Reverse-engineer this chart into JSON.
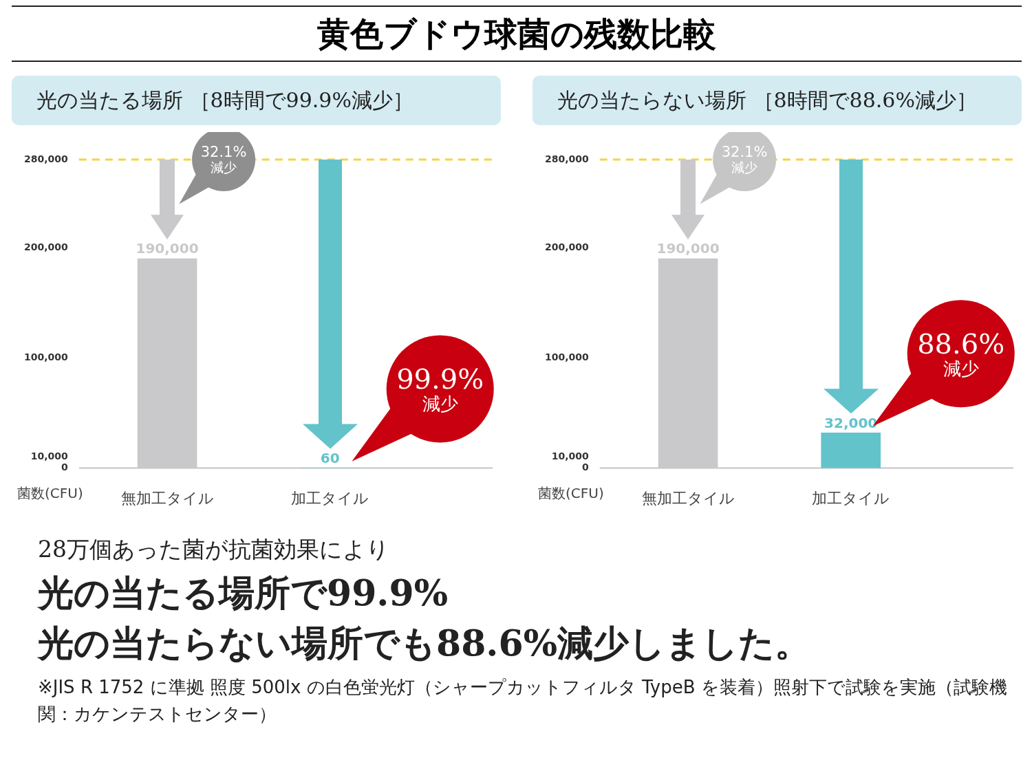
{
  "chart_data": [
    {
      "type": "bar",
      "title": "黄色ブドウ球菌の残数比較",
      "subtitle": "光の当たる場所 ［8時間で99.9%減少］",
      "ylabel": "菌数(CFU)",
      "categories": [
        "無加工タイル",
        "加工タイル"
      ],
      "values": [
        190000,
        60
      ],
      "value_labels": [
        "190,000",
        "60"
      ],
      "colors": [
        "#c9c9cb",
        "#63c3cb"
      ],
      "ylim": [
        0,
        280000
      ],
      "yticks": [
        0,
        {
          "value": 10000,
          "label": "10,000"
        },
        {
          "value": 100000,
          "label": "100,000"
        },
        {
          "value": 200000,
          "label": "200,000"
        },
        {
          "value": 280000,
          "label": "280,000"
        }
      ],
      "ref_lines": [
        {
          "axis": "y",
          "value": 280000,
          "color": "#f5d442",
          "line_style": "dashed"
        }
      ],
      "annotations": [
        "32.1% 減少",
        "99.9% 減少"
      ]
    },
    {
      "type": "bar",
      "subtitle": "光の当たらない場所 ［8時間で88.6%減少］",
      "ylabel": "菌数(CFU)",
      "categories": [
        "無加工タイル",
        "加工タイル"
      ],
      "values": [
        190000,
        32000
      ],
      "value_labels": [
        "190,000",
        "32,000"
      ],
      "colors": [
        "#c9c9cb",
        "#63c3cb"
      ],
      "ylim": [
        0,
        280000
      ],
      "yticks": [
        0,
        {
          "value": 10000,
          "label": "10,000"
        },
        {
          "value": 100000,
          "label": "100,000"
        },
        {
          "value": 200000,
          "label": "200,000"
        },
        {
          "value": 280000,
          "label": "280,000"
        }
      ],
      "ref_lines": [
        {
          "axis": "y",
          "value": 280000,
          "color": "#f5d442",
          "line_style": "dashed"
        }
      ],
      "annotations": [
        "32.1% 減少",
        "88.6% 減少"
      ]
    },
    {
      "type": "other",
      "annotations": [
        "28万個あった菌が抗菌効果により",
        "光の当たる場所で99.9%",
        "光の当たらない場所でも88.6%減少しました。",
        "※JIS R 1752 に準拠 照度 500lx の白色蛍光灯（シャープカットフィルタ TypeB を装着）照射下で試験を実施（試験機関：カケンテストセンター）"
      ]
    }
  ]
}
